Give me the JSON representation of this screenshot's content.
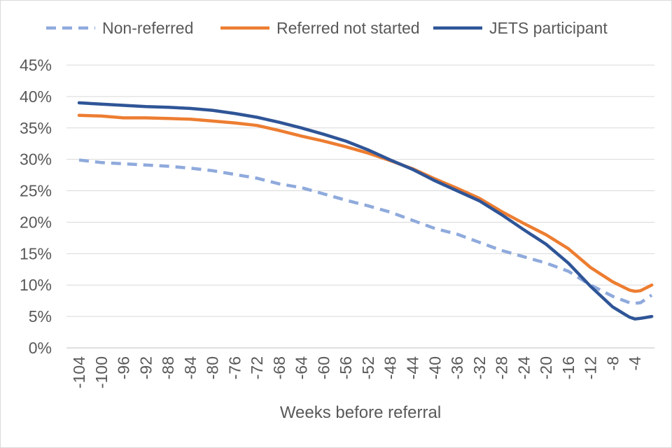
{
  "chart_data": {
    "type": "line",
    "title": "",
    "xlabel": "Weeks before referral",
    "ylabel": "",
    "xlim": [
      -104,
      -1
    ],
    "ylim": [
      0,
      45
    ],
    "y_ticks": [
      0,
      5,
      10,
      15,
      20,
      25,
      30,
      35,
      40,
      45
    ],
    "y_tick_labels": [
      "0%",
      "5%",
      "10%",
      "15%",
      "20%",
      "25%",
      "30%",
      "35%",
      "40%",
      "45%"
    ],
    "x_ticks": [
      -104,
      -100,
      -96,
      -92,
      -88,
      -84,
      -80,
      -76,
      -72,
      -68,
      -64,
      -60,
      -56,
      -52,
      -48,
      -44,
      -40,
      -36,
      -32,
      -28,
      -24,
      -20,
      -16,
      -12,
      -8,
      -4
    ],
    "x_tick_labels": [
      "-104",
      "-100",
      "-96",
      "-92",
      "-88",
      "-84",
      "-80",
      "-76",
      "-72",
      "-68",
      "-64",
      "-60",
      "-56",
      "-52",
      "-48",
      "-44",
      "-40",
      "-36",
      "-32",
      "-28",
      "-24",
      "-20",
      "-16",
      "-12",
      "-8",
      "-4"
    ],
    "grid": true,
    "legend_position": "top",
    "x": [
      -104,
      -100,
      -96,
      -92,
      -88,
      -84,
      -80,
      -76,
      -72,
      -68,
      -64,
      -60,
      -56,
      -52,
      -48,
      -44,
      -40,
      -36,
      -32,
      -28,
      -24,
      -20,
      -16,
      -12,
      -8,
      -5,
      -4,
      -3,
      -1
    ],
    "series": [
      {
        "name": "Non-referred",
        "color": "#8faadc",
        "style": "dashed",
        "values": [
          29.9,
          29.5,
          29.3,
          29.1,
          28.9,
          28.6,
          28.2,
          27.6,
          27.0,
          26.1,
          25.5,
          24.5,
          23.5,
          22.6,
          21.6,
          20.3,
          19.0,
          18.1,
          16.8,
          15.5,
          14.5,
          13.5,
          12.2,
          10.0,
          8.2,
          7.2,
          7.1,
          7.2,
          8.4
        ]
      },
      {
        "name": "Referred not started",
        "color": "#ed7d31",
        "style": "solid",
        "values": [
          37.0,
          36.9,
          36.6,
          36.6,
          36.5,
          36.4,
          36.1,
          35.8,
          35.4,
          34.6,
          33.7,
          32.9,
          32.0,
          31.0,
          29.8,
          28.5,
          26.9,
          25.4,
          23.8,
          21.7,
          19.8,
          18.0,
          15.8,
          12.8,
          10.5,
          9.2,
          9.0,
          9.1,
          10.0
        ]
      },
      {
        "name": "JETS participant",
        "color": "#2f5597",
        "style": "solid",
        "values": [
          39.0,
          38.8,
          38.6,
          38.4,
          38.3,
          38.1,
          37.8,
          37.3,
          36.7,
          35.9,
          35.0,
          34.0,
          32.9,
          31.5,
          29.9,
          28.4,
          26.6,
          25.0,
          23.4,
          21.2,
          18.8,
          16.5,
          13.5,
          9.8,
          6.5,
          4.9,
          4.6,
          4.7,
          5.0
        ]
      }
    ]
  }
}
